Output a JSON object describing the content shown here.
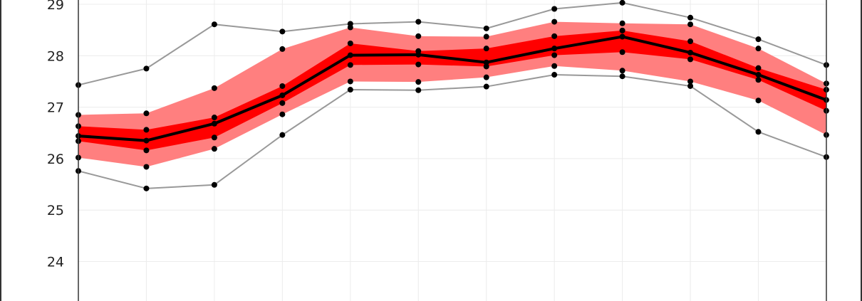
{
  "chart_data": {
    "type": "line",
    "title": "",
    "xlabel": "",
    "ylabel": "",
    "ylim": [
      23.3,
      29.1
    ],
    "yticks": [
      "24",
      "25",
      "26",
      "27",
      "28",
      "29"
    ],
    "grid": true,
    "x": [
      1,
      2,
      3,
      4,
      5,
      6,
      7,
      8,
      9,
      10,
      11,
      12
    ],
    "outer_band": {
      "lower": [
        26.02,
        25.84,
        26.19,
        26.86,
        27.5,
        27.49,
        27.58,
        27.8,
        27.71,
        27.5,
        27.13,
        26.46
      ],
      "upper": [
        26.85,
        26.88,
        27.37,
        28.13,
        28.55,
        28.38,
        28.37,
        28.66,
        28.63,
        28.61,
        28.14,
        27.46
      ]
    },
    "inner_band": {
      "lower": [
        26.34,
        26.16,
        26.41,
        27.08,
        27.82,
        27.83,
        27.79,
        28.01,
        28.07,
        27.93,
        27.53,
        26.93
      ],
      "upper": [
        26.63,
        26.56,
        26.8,
        27.41,
        28.24,
        28.09,
        28.14,
        28.38,
        28.49,
        28.28,
        27.76,
        27.34
      ]
    },
    "series": [
      {
        "values": [
          26.44,
          26.35,
          26.68,
          27.23,
          28.01,
          28.02,
          27.87,
          28.14,
          28.37,
          28.06,
          27.63,
          27.14
        ],
        "color": "#000000"
      },
      {
        "values": [
          27.43,
          27.75,
          28.61,
          28.47,
          28.62,
          28.66,
          28.53,
          28.91,
          29.03,
          28.74,
          28.32,
          27.82
        ],
        "color": "#999999"
      },
      {
        "values": [
          25.76,
          25.42,
          25.49,
          26.46,
          27.34,
          27.33,
          27.4,
          27.63,
          27.6,
          27.41,
          26.52,
          26.03
        ],
        "color": "#999999"
      }
    ],
    "colors": {
      "outer_band": "#ff7f7f",
      "inner_band": "#ff0000",
      "mean": "#000000",
      "extremes": "#999999",
      "markers": "#000000"
    }
  }
}
